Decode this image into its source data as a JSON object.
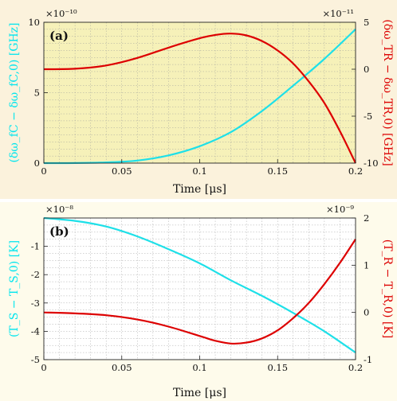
{
  "chart_data": [
    {
      "type": "line",
      "panel_label": "(a)",
      "background": "#fbf2dc",
      "plot_background": "#f6f1b9",
      "xlabel": "Time [μs]",
      "xlim": [
        0,
        0.2
      ],
      "xticks": [
        0,
        0.05,
        0.1,
        0.15,
        0.2
      ],
      "xtick_labels": [
        "0",
        "0.05",
        "0.1",
        "0.15",
        "0.2"
      ],
      "grid": true,
      "left_axis": {
        "label": "(δω_fC − δω_fC,0) [GHz]",
        "color": "#00e5ee",
        "multiplier": "×10⁻¹⁰",
        "ylim": [
          0,
          10
        ],
        "ticks": [
          0,
          5,
          10
        ],
        "tick_labels": [
          "0",
          "5",
          "10"
        ]
      },
      "right_axis": {
        "label": "(δω_TR − δω_TR,0) [GHz]",
        "color": "#dd0000",
        "multiplier": "×10⁻¹¹",
        "ylim": [
          -10,
          5
        ],
        "ticks": [
          5,
          0,
          -5,
          -10
        ],
        "tick_labels": [
          "5",
          "0",
          "-5",
          "-10"
        ]
      },
      "series": [
        {
          "axis": "left",
          "color": "#1ee0e8",
          "x": [
            0,
            0.02,
            0.04,
            0.06,
            0.08,
            0.1,
            0.12,
            0.14,
            0.16,
            0.18,
            0.2
          ],
          "y": [
            0,
            0.005,
            0.05,
            0.18,
            0.55,
            1.2,
            2.2,
            3.7,
            5.5,
            7.4,
            9.5
          ]
        },
        {
          "axis": "right",
          "color": "#dd0000",
          "x": [
            0,
            0.02,
            0.04,
            0.06,
            0.08,
            0.1,
            0.11,
            0.12,
            0.13,
            0.14,
            0.15,
            0.16,
            0.17,
            0.18,
            0.19,
            0.2
          ],
          "y": [
            0,
            0.05,
            0.4,
            1.2,
            2.3,
            3.3,
            3.65,
            3.8,
            3.6,
            3.0,
            2.0,
            0.6,
            -1.3,
            -3.6,
            -6.6,
            -10
          ]
        }
      ]
    },
    {
      "type": "line",
      "panel_label": "(b)",
      "background": "#fefbeb",
      "plot_background": "#ffffff",
      "xlabel": "Time [μs]",
      "xlim": [
        0,
        0.2
      ],
      "xticks": [
        0,
        0.05,
        0.1,
        0.15,
        0.2
      ],
      "xtick_labels": [
        "0",
        "0.05",
        "0.1",
        "0.15",
        "0.2"
      ],
      "grid": true,
      "left_axis": {
        "label": "(T_S − T_S,0) [K]",
        "color": "#00e5ee",
        "multiplier": "×10⁻⁸",
        "ylim": [
          -5,
          0
        ],
        "ticks": [
          -1,
          -2,
          -3,
          -4,
          -5
        ],
        "tick_labels": [
          "-1",
          "-2",
          "-3",
          "-4",
          "-5"
        ]
      },
      "right_axis": {
        "label": "(T_R − T_R,0) [K]",
        "color": "#dd0000",
        "multiplier": "×10⁻⁹",
        "ylim": [
          -1,
          2
        ],
        "ticks": [
          2,
          1,
          0,
          -1
        ],
        "tick_labels": [
          "2",
          "1",
          "0",
          "-1"
        ]
      },
      "series": [
        {
          "axis": "left",
          "color": "#1ee0e8",
          "x": [
            0,
            0.02,
            0.04,
            0.06,
            0.08,
            0.1,
            0.12,
            0.14,
            0.16,
            0.18,
            0.2
          ],
          "y": [
            0,
            -0.1,
            -0.3,
            -0.65,
            -1.1,
            -1.6,
            -2.2,
            -2.75,
            -3.35,
            -4.0,
            -4.75
          ]
        },
        {
          "axis": "right",
          "color": "#dd0000",
          "x": [
            0,
            0.02,
            0.04,
            0.06,
            0.08,
            0.1,
            0.11,
            0.12,
            0.13,
            0.14,
            0.15,
            0.16,
            0.17,
            0.18,
            0.19,
            0.2
          ],
          "y": [
            0,
            -0.02,
            -0.06,
            -0.15,
            -0.3,
            -0.5,
            -0.6,
            -0.66,
            -0.64,
            -0.55,
            -0.38,
            -0.12,
            0.2,
            0.6,
            1.05,
            1.55
          ]
        }
      ]
    }
  ]
}
